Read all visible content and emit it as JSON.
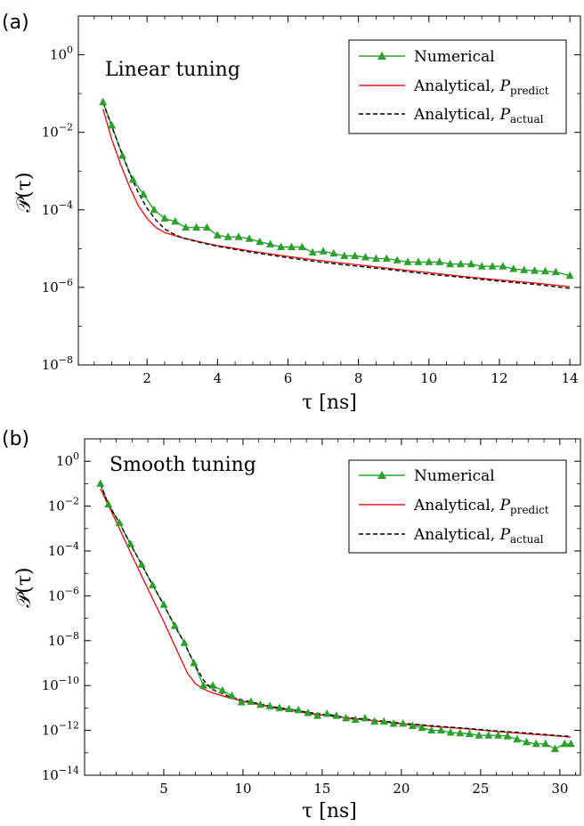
{
  "colors": {
    "numerical": "#2ca02c",
    "predict": "#e31a1c",
    "actual": "#000000"
  },
  "chart_data": [
    {
      "panel": "(a)",
      "type": "line",
      "title": "Linear tuning",
      "xlabel": "τ [ns]",
      "ylabel": "𝒫(τ)",
      "yscale": "log",
      "xlim": [
        0.05,
        14.3
      ],
      "ylim_exp": [
        -8,
        1
      ],
      "xticks": [
        2,
        4,
        6,
        8,
        10,
        12,
        14
      ],
      "xtick_labels": [
        "2",
        "4",
        "6",
        "8",
        "10",
        "12",
        "14"
      ],
      "yticks_exp": [
        -8,
        -6,
        -4,
        -2,
        0
      ],
      "ytick_labels": [
        {
          "base": "10",
          "exp": "−8"
        },
        {
          "base": "10",
          "exp": "−6"
        },
        {
          "base": "10",
          "exp": "−4"
        },
        {
          "base": "10",
          "exp": "−2"
        },
        {
          "base": "10",
          "exp": "0"
        }
      ],
      "legend_position": "top-right",
      "series": [
        {
          "name": "Numerical",
          "style": "line-triangle",
          "x": [
            0.75,
            1.0,
            1.3,
            1.6,
            1.9,
            2.2,
            2.5,
            2.8,
            3.1,
            3.4,
            3.7,
            4.0,
            4.3,
            4.6,
            4.9,
            5.2,
            5.5,
            5.8,
            6.1,
            6.4,
            6.7,
            7.0,
            7.3,
            7.6,
            7.9,
            8.2,
            8.5,
            8.8,
            9.1,
            9.4,
            9.7,
            10.0,
            10.3,
            10.6,
            10.9,
            11.2,
            11.5,
            11.8,
            12.1,
            12.4,
            12.7,
            13.0,
            13.3,
            13.6,
            14.0
          ],
          "y": [
            0.06,
            0.015,
            0.0025,
            0.0006,
            0.00025,
            0.0001,
            6e-05,
            5e-05,
            3.5e-05,
            3.5e-05,
            3.5e-05,
            2.2e-05,
            2e-05,
            2e-05,
            1.8e-05,
            1.5e-05,
            1.3e-05,
            1.1e-05,
            1.1e-05,
            1.1e-05,
            8e-06,
            8.5e-06,
            7.5e-06,
            6.5e-06,
            6.5e-06,
            6e-06,
            5.5e-06,
            5.5e-06,
            5e-06,
            4.5e-06,
            4.5e-06,
            4.5e-06,
            4.5e-06,
            4e-06,
            4e-06,
            4e-06,
            3.5e-06,
            3.5e-06,
            3.5e-06,
            3e-06,
            2.8e-06,
            2.7e-06,
            2.6e-06,
            2.5e-06,
            2e-06
          ]
        },
        {
          "name": "Analytical, P_predict",
          "label_main": "Analytical, ",
          "label_sym": "P",
          "label_sub": "predict",
          "style": "line-solid",
          "x": [
            0.75,
            1.0,
            1.25,
            1.5,
            1.75,
            2.0,
            2.25,
            2.5,
            3.0,
            3.5,
            4.0,
            5.0,
            6.0,
            7.0,
            8.0,
            9.0,
            10.0,
            11.0,
            12.0,
            13.0,
            14.0
          ],
          "y": [
            0.04,
            0.0065,
            0.0015,
            0.0004,
            0.00013,
            6e-05,
            3.5e-05,
            2.6e-05,
            1.9e-05,
            1.5e-05,
            1.2e-05,
            8.5e-06,
            6.3e-06,
            4.8e-06,
            3.8e-06,
            3e-06,
            2.4e-06,
            1.9e-06,
            1.55e-06,
            1.3e-06,
            1.05e-06
          ]
        },
        {
          "name": "Analytical, P_actual",
          "label_main": "Analytical, ",
          "label_sym": "P",
          "label_sub": "actual",
          "style": "line-dashed",
          "x": [
            0.75,
            1.0,
            1.25,
            1.5,
            1.75,
            2.0,
            2.25,
            2.5,
            2.75,
            3.0,
            3.5,
            4.0,
            5.0,
            6.0,
            7.0,
            8.0,
            9.0,
            10.0,
            11.0,
            12.0,
            13.0,
            14.0
          ],
          "y": [
            0.06,
            0.014,
            0.0035,
            0.0009,
            0.00028,
            0.00011,
            5.5e-05,
            3.2e-05,
            2.4e-05,
            1.9e-05,
            1.45e-05,
            1.15e-05,
            8e-06,
            5.8e-06,
            4.4e-06,
            3.5e-06,
            2.8e-06,
            2.2e-06,
            1.8e-06,
            1.45e-06,
            1.2e-06,
            9.5e-07
          ]
        }
      ]
    },
    {
      "panel": "(b)",
      "type": "line",
      "title": "Smooth tuning",
      "xlabel": "τ [ns]",
      "ylabel": "𝒫(τ)",
      "yscale": "log",
      "xlim": [
        0.0,
        31.3
      ],
      "ylim_exp": [
        -14,
        1
      ],
      "xticks": [
        5,
        10,
        15,
        20,
        25,
        30
      ],
      "xtick_labels": [
        "5",
        "10",
        "15",
        "20",
        "25",
        "30"
      ],
      "yticks_exp": [
        -14,
        -12,
        -10,
        -8,
        -6,
        -4,
        -2,
        0
      ],
      "ytick_labels": [
        {
          "base": "10",
          "exp": "−14"
        },
        {
          "base": "10",
          "exp": "−12"
        },
        {
          "base": "10",
          "exp": "−10"
        },
        {
          "base": "10",
          "exp": "−8"
        },
        {
          "base": "10",
          "exp": "−6"
        },
        {
          "base": "10",
          "exp": "−4"
        },
        {
          "base": "10",
          "exp": "−2"
        },
        {
          "base": "10",
          "exp": "0"
        }
      ],
      "legend_position": "top-right",
      "series": [
        {
          "name": "Numerical",
          "style": "line-triangle",
          "x": [
            1.0,
            1.5,
            2.2,
            2.9,
            3.6,
            4.3,
            5.0,
            5.7,
            6.3,
            6.9,
            7.5,
            8.1,
            8.7,
            9.3,
            9.9,
            10.5,
            11.1,
            11.7,
            12.3,
            12.9,
            13.5,
            14.1,
            14.7,
            15.3,
            15.9,
            16.5,
            17.1,
            17.7,
            18.3,
            18.9,
            19.5,
            20.1,
            20.7,
            21.3,
            21.9,
            22.5,
            23.1,
            23.7,
            24.3,
            24.9,
            25.5,
            26.1,
            26.7,
            27.3,
            27.9,
            28.5,
            29.1,
            29.7,
            30.3,
            30.7
          ],
          "y": [
            0.1,
            0.012,
            0.0018,
            0.0002,
            2.5e-05,
            3e-06,
            4e-07,
            4.5e-08,
            8e-09,
            1e-09,
            1e-10,
            1e-10,
            6e-11,
            3.5e-11,
            1.8e-11,
            1.9e-11,
            1.4e-11,
            1.2e-11,
            1e-11,
            9e-12,
            8e-12,
            6e-12,
            4.5e-12,
            5.5e-12,
            4.5e-12,
            3.5e-12,
            3e-12,
            3.5e-12,
            2.5e-12,
            2.5e-12,
            2e-12,
            2e-12,
            1.6e-12,
            1.3e-12,
            1e-12,
            1e-12,
            8e-13,
            7.5e-13,
            7e-13,
            6e-13,
            6e-13,
            6e-13,
            5.5e-13,
            4e-13,
            3e-13,
            2.5e-13,
            2.5e-13,
            1.5e-13,
            2.5e-13,
            2.5e-13
          ]
        },
        {
          "name": "Analytical, P_predict",
          "label_main": "Analytical, ",
          "label_sym": "P",
          "label_sub": "predict",
          "style": "line-solid",
          "x": [
            1.0,
            2.0,
            3.0,
            4.0,
            5.0,
            6.0,
            6.5,
            7.0,
            7.5,
            8.0,
            9.0,
            10.0,
            12.0,
            14.0,
            16.0,
            18.0,
            20.0,
            22.0,
            24.0,
            26.0,
            28.0,
            30.0,
            30.7
          ],
          "y": [
            0.06,
            0.002,
            6e-05,
            2e-06,
            7e-08,
            2e-09,
            3.5e-10,
            1.2e-10,
            7e-11,
            5e-11,
            3e-11,
            2e-11,
            1e-11,
            6e-12,
            4e-12,
            2.8e-12,
            2e-12,
            1.5e-12,
            1.2e-12,
            9e-13,
            7e-13,
            5.5e-13,
            5e-13
          ]
        },
        {
          "name": "Analytical, P_actual",
          "label_main": "Analytical, ",
          "label_sym": "P",
          "label_sub": "actual",
          "style": "line-dashed",
          "x": [
            1.0,
            1.5,
            2.2,
            2.9,
            3.6,
            4.3,
            5.0,
            5.7,
            6.3,
            6.9,
            7.5,
            8.0,
            9.0,
            10.0,
            12.0,
            14.0,
            16.0,
            18.0,
            20.0,
            22.0,
            24.0,
            26.0,
            28.0,
            30.0,
            30.7
          ],
          "y": [
            0.1,
            0.012,
            0.0018,
            0.0002,
            2.5e-05,
            3e-06,
            4e-07,
            4.5e-08,
            8e-09,
            1e-09,
            1.8e-10,
            7e-11,
            3.5e-11,
            2.2e-11,
            1.1e-11,
            6.5e-12,
            4.2e-12,
            3e-12,
            2.1e-12,
            1.6e-12,
            1.25e-12,
            9.5e-13,
            7.5e-13,
            5.8e-13,
            5.3e-13
          ]
        }
      ]
    }
  ]
}
